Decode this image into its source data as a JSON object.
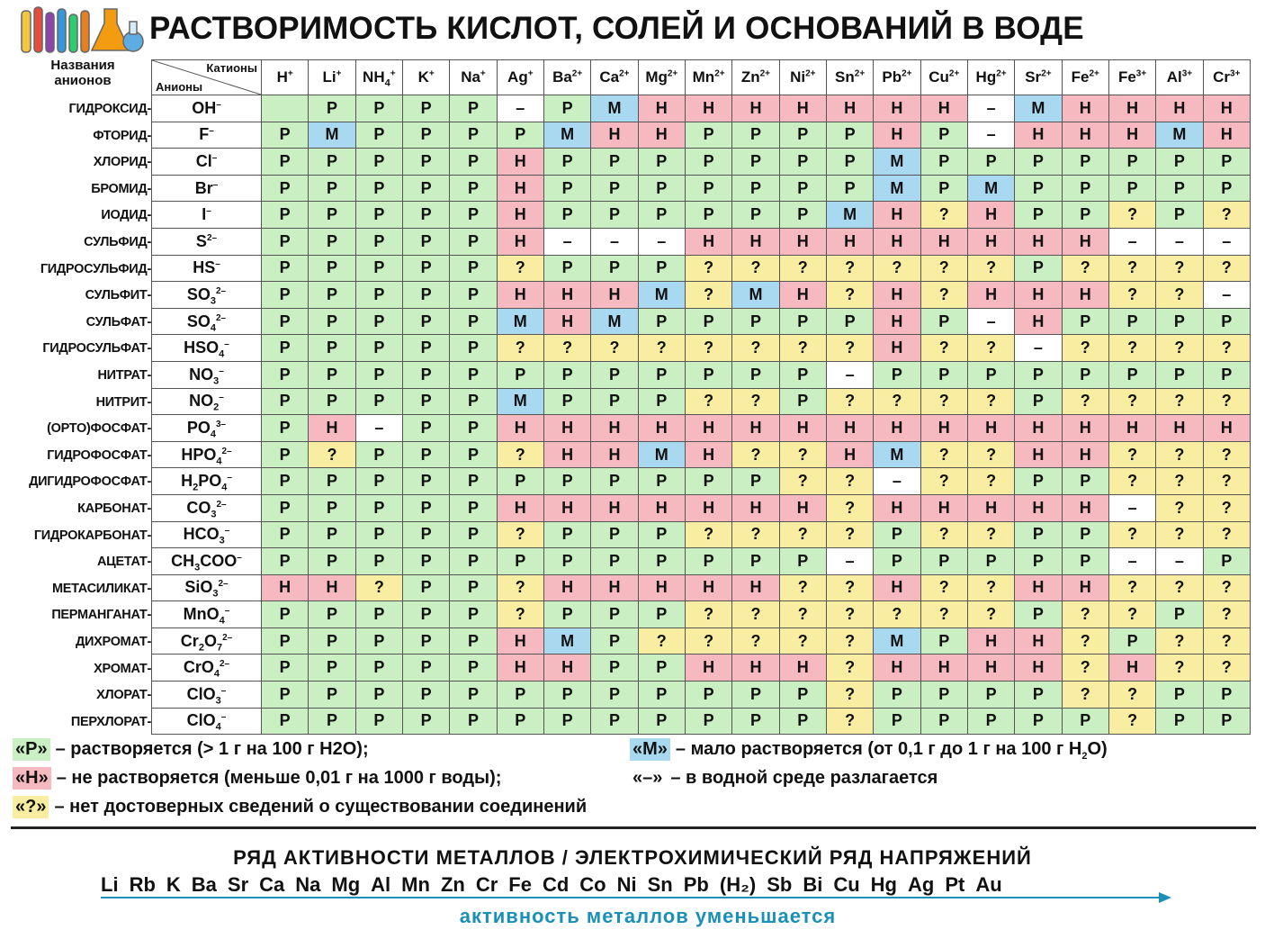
{
  "header": {
    "title": "РАСТВОРИМОСТЬ  КИСЛОТ,  СОЛЕЙ  И  ОСНОВАНИЙ В ВОДЕ"
  },
  "table_header": {
    "anion_names_label": "Названия анионов",
    "corner_cations": "Катионы",
    "corner_anions": "Анионы",
    "cations": [
      {
        "base": "H",
        "charge": "+"
      },
      {
        "base": "Li",
        "charge": "+"
      },
      {
        "base": "NH",
        "sub": "4",
        "charge": "+"
      },
      {
        "base": "K",
        "charge": "+"
      },
      {
        "base": "Na",
        "charge": "+"
      },
      {
        "base": "Ag",
        "charge": "+"
      },
      {
        "base": "Ba",
        "charge": "2+"
      },
      {
        "base": "Ca",
        "charge": "2+"
      },
      {
        "base": "Mg",
        "charge": "2+"
      },
      {
        "base": "Mn",
        "charge": "2+"
      },
      {
        "base": "Zn",
        "charge": "2+"
      },
      {
        "base": "Ni",
        "charge": "2+"
      },
      {
        "base": "Sn",
        "charge": "2+"
      },
      {
        "base": "Pb",
        "charge": "2+"
      },
      {
        "base": "Cu",
        "charge": "2+"
      },
      {
        "base": "Hg",
        "charge": "2+"
      },
      {
        "base": "Sr",
        "charge": "2+"
      },
      {
        "base": "Fe",
        "charge": "2+"
      },
      {
        "base": "Fe",
        "charge": "3+"
      },
      {
        "base": "Al",
        "charge": "3+"
      },
      {
        "base": "Cr",
        "charge": "3+"
      }
    ]
  },
  "rows": [
    {
      "name": "ГИДРОКСИД-",
      "formula": [
        {
          "t": "OH"
        },
        {
          "sup": "–"
        }
      ],
      "cells": [
        "",
        "Р",
        "Р",
        "Р",
        "Р",
        "–",
        "Р",
        "М",
        "Н",
        "Н",
        "Н",
        "Н",
        "Н",
        "Н",
        "Н",
        "–",
        "М",
        "Н",
        "Н",
        "Н",
        "Н"
      ]
    },
    {
      "name": "ФТОРИД-",
      "formula": [
        {
          "t": "F"
        },
        {
          "sup": "–"
        }
      ],
      "cells": [
        "Р",
        "М",
        "Р",
        "Р",
        "Р",
        "Р",
        "М",
        "Н",
        "Н",
        "Р",
        "Р",
        "Р",
        "Р",
        "Н",
        "Р",
        "–",
        "Н",
        "Н",
        "Н",
        "М",
        "Н"
      ]
    },
    {
      "name": "ХЛОРИД-",
      "formula": [
        {
          "t": "Cl"
        },
        {
          "sup": "–"
        }
      ],
      "cells": [
        "Р",
        "Р",
        "Р",
        "Р",
        "Р",
        "Н",
        "Р",
        "Р",
        "Р",
        "Р",
        "Р",
        "Р",
        "Р",
        "М",
        "Р",
        "Р",
        "Р",
        "Р",
        "Р",
        "Р",
        "Р"
      ]
    },
    {
      "name": "БРОМИД-",
      "formula": [
        {
          "t": "Br"
        },
        {
          "sup": "–"
        }
      ],
      "cells": [
        "Р",
        "Р",
        "Р",
        "Р",
        "Р",
        "Н",
        "Р",
        "Р",
        "Р",
        "Р",
        "Р",
        "Р",
        "Р",
        "М",
        "Р",
        "М",
        "Р",
        "Р",
        "Р",
        "Р",
        "Р"
      ]
    },
    {
      "name": "ИОДИД-",
      "formula": [
        {
          "t": "I"
        },
        {
          "sup": "–"
        }
      ],
      "cells": [
        "Р",
        "Р",
        "Р",
        "Р",
        "Р",
        "Н",
        "Р",
        "Р",
        "Р",
        "Р",
        "Р",
        "Р",
        "М",
        "Н",
        "?",
        "Н",
        "Р",
        "Р",
        "?",
        "Р",
        "?"
      ]
    },
    {
      "name": "СУЛЬФИД-",
      "formula": [
        {
          "t": "S"
        },
        {
          "sup": "2–"
        }
      ],
      "cells": [
        "Р",
        "Р",
        "Р",
        "Р",
        "Р",
        "Н",
        "–",
        "–",
        "–",
        "Н",
        "Н",
        "Н",
        "Н",
        "Н",
        "Н",
        "Н",
        "Н",
        "Н",
        "–",
        "–",
        "–"
      ]
    },
    {
      "name": "ГИДРОСУЛЬФИД-",
      "formula": [
        {
          "t": "HS"
        },
        {
          "sup": "–"
        }
      ],
      "cells": [
        "Р",
        "Р",
        "Р",
        "Р",
        "Р",
        "?",
        "Р",
        "Р",
        "Р",
        "?",
        "?",
        "?",
        "?",
        "?",
        "?",
        "?",
        "Р",
        "?",
        "?",
        "?",
        "?"
      ]
    },
    {
      "name": "СУЛЬФИТ-",
      "formula": [
        {
          "t": "SO"
        },
        {
          "sub": "3"
        },
        {
          "sup": "2–"
        }
      ],
      "cells": [
        "Р",
        "Р",
        "Р",
        "Р",
        "Р",
        "Н",
        "Н",
        "Н",
        "М",
        "?",
        "М",
        "Н",
        "?",
        "Н",
        "?",
        "Н",
        "Н",
        "Н",
        "?",
        "?",
        "–"
      ]
    },
    {
      "name": "СУЛЬФАТ-",
      "formula": [
        {
          "t": "SO"
        },
        {
          "sub": "4"
        },
        {
          "sup": "2–"
        }
      ],
      "cells": [
        "Р",
        "Р",
        "Р",
        "Р",
        "Р",
        "М",
        "Н",
        "М",
        "Р",
        "Р",
        "Р",
        "Р",
        "Р",
        "Н",
        "Р",
        "–",
        "Н",
        "Р",
        "Р",
        "Р",
        "Р"
      ]
    },
    {
      "name": "ГИДРОСУЛЬФАТ-",
      "formula": [
        {
          "t": "HSO"
        },
        {
          "sub": "4"
        },
        {
          "sup": "–"
        }
      ],
      "cells": [
        "Р",
        "Р",
        "Р",
        "Р",
        "Р",
        "?",
        "?",
        "?",
        "?",
        "?",
        "?",
        "?",
        "?",
        "Н",
        "?",
        "?",
        "–",
        "?",
        "?",
        "?",
        "?"
      ]
    },
    {
      "name": "НИТРАТ-",
      "formula": [
        {
          "t": "NO"
        },
        {
          "sub": "3"
        },
        {
          "sup": "–"
        }
      ],
      "cells": [
        "Р",
        "Р",
        "Р",
        "Р",
        "Р",
        "Р",
        "Р",
        "Р",
        "Р",
        "Р",
        "Р",
        "Р",
        "–",
        "Р",
        "Р",
        "Р",
        "Р",
        "Р",
        "Р",
        "Р",
        "Р"
      ]
    },
    {
      "name": "НИТРИТ-",
      "formula": [
        {
          "t": "NO"
        },
        {
          "sub": "2"
        },
        {
          "sup": "–"
        }
      ],
      "cells": [
        "Р",
        "Р",
        "Р",
        "Р",
        "Р",
        "М",
        "Р",
        "Р",
        "Р",
        "?",
        "?",
        "Р",
        "?",
        "?",
        "?",
        "?",
        "Р",
        "?",
        "?",
        "?",
        "?"
      ]
    },
    {
      "name": "(ОРТО)ФОСФАТ-",
      "formula": [
        {
          "t": "PO"
        },
        {
          "sub": "4"
        },
        {
          "sup": "3–"
        }
      ],
      "cells": [
        "Р",
        "Н",
        "–",
        "Р",
        "Р",
        "Н",
        "Н",
        "Н",
        "Н",
        "Н",
        "Н",
        "Н",
        "Н",
        "Н",
        "Н",
        "Н",
        "Н",
        "Н",
        "Н",
        "Н",
        "Н"
      ]
    },
    {
      "name": "ГИДРОФОСФАТ-",
      "formula": [
        {
          "t": "HPO"
        },
        {
          "sub": "4"
        },
        {
          "sup": "2–"
        }
      ],
      "cells": [
        "Р",
        "?",
        "Р",
        "Р",
        "Р",
        "?",
        "Н",
        "Н",
        "М",
        "Н",
        "?",
        "?",
        "Н",
        "М",
        "?",
        "?",
        "Н",
        "Н",
        "?",
        "?",
        "?"
      ]
    },
    {
      "name": "ДИГИДРОФОСФАТ-",
      "formula": [
        {
          "t": "H"
        },
        {
          "sub": "2"
        },
        {
          "t": "PO"
        },
        {
          "sub": "4"
        },
        {
          "sup": "–"
        }
      ],
      "cells": [
        "Р",
        "Р",
        "Р",
        "Р",
        "Р",
        "Р",
        "Р",
        "Р",
        "Р",
        "Р",
        "Р",
        "?",
        "?",
        "–",
        "?",
        "?",
        "Р",
        "Р",
        "?",
        "?",
        "?"
      ]
    },
    {
      "name": "КАРБОНАТ-",
      "formula": [
        {
          "t": "CO"
        },
        {
          "sub": "3"
        },
        {
          "sup": "2–"
        }
      ],
      "cells": [
        "Р",
        "Р",
        "Р",
        "Р",
        "Р",
        "Н",
        "Н",
        "Н",
        "Н",
        "Н",
        "Н",
        "Н",
        "?",
        "Н",
        "Н",
        "Н",
        "Н",
        "Н",
        "–",
        "?",
        "?"
      ]
    },
    {
      "name": "ГИДРОКАРБОНАТ-",
      "formula": [
        {
          "t": "HCO"
        },
        {
          "sub": "3"
        },
        {
          "sup": "–"
        }
      ],
      "cells": [
        "Р",
        "Р",
        "Р",
        "Р",
        "Р",
        "?",
        "Р",
        "Р",
        "Р",
        "?",
        "?",
        "?",
        "?",
        "Р",
        "?",
        "?",
        "Р",
        "Р",
        "?",
        "?",
        "?"
      ]
    },
    {
      "name": "АЦЕТАТ-",
      "formula": [
        {
          "t": "CH"
        },
        {
          "sub": "3"
        },
        {
          "t": "COO"
        },
        {
          "sup": "–"
        }
      ],
      "cells": [
        "Р",
        "Р",
        "Р",
        "Р",
        "Р",
        "Р",
        "Р",
        "Р",
        "Р",
        "Р",
        "Р",
        "Р",
        "–",
        "Р",
        "Р",
        "Р",
        "Р",
        "Р",
        "–",
        "–",
        "Р"
      ]
    },
    {
      "name": "МЕТАСИЛИКАТ-",
      "formula": [
        {
          "t": "SiO"
        },
        {
          "sub": "3"
        },
        {
          "sup": "2–"
        }
      ],
      "cells": [
        "Н",
        "Н",
        "?",
        "Р",
        "Р",
        "?",
        "Н",
        "Н",
        "Н",
        "Н",
        "Н",
        "?",
        "?",
        "Н",
        "?",
        "?",
        "Н",
        "Н",
        "?",
        "?",
        "?"
      ]
    },
    {
      "name": "ПЕРМАНГАНАТ-",
      "formula": [
        {
          "t": "MnO"
        },
        {
          "sub": "4"
        },
        {
          "sup": "–"
        }
      ],
      "cells": [
        "Р",
        "Р",
        "Р",
        "Р",
        "Р",
        "?",
        "Р",
        "Р",
        "Р",
        "?",
        "?",
        "?",
        "?",
        "?",
        "?",
        "?",
        "Р",
        "?",
        "?",
        "Р",
        "?"
      ]
    },
    {
      "name": "ДИХРОМАТ-",
      "formula": [
        {
          "t": "Cr"
        },
        {
          "sub": "2"
        },
        {
          "t": "O"
        },
        {
          "sub": "7"
        },
        {
          "sup": "2–"
        }
      ],
      "cells": [
        "Р",
        "Р",
        "Р",
        "Р",
        "Р",
        "Н",
        "М",
        "Р",
        "?",
        "?",
        "?",
        "?",
        "?",
        "М",
        "Р",
        "Н",
        "Н",
        "?",
        "Р",
        "?",
        "?"
      ]
    },
    {
      "name": "ХРОМАТ-",
      "formula": [
        {
          "t": "CrO"
        },
        {
          "sub": "4"
        },
        {
          "sup": "2–"
        }
      ],
      "cells": [
        "Р",
        "Р",
        "Р",
        "Р",
        "Р",
        "Н",
        "Н",
        "Р",
        "Р",
        "Н",
        "Н",
        "Н",
        "?",
        "Н",
        "Н",
        "Н",
        "Н",
        "?",
        "Н",
        "?",
        "?"
      ]
    },
    {
      "name": "ХЛОРАТ-",
      "formula": [
        {
          "t": "ClO"
        },
        {
          "sub": "3"
        },
        {
          "sup": "–"
        }
      ],
      "cells": [
        "Р",
        "Р",
        "Р",
        "Р",
        "Р",
        "Р",
        "Р",
        "Р",
        "Р",
        "Р",
        "Р",
        "Р",
        "?",
        "Р",
        "Р",
        "Р",
        "Р",
        "?",
        "?",
        "Р",
        "Р"
      ]
    },
    {
      "name": "ПЕРХЛОРАТ-",
      "formula": [
        {
          "t": "ClO"
        },
        {
          "sub": "4"
        },
        {
          "sup": "–"
        }
      ],
      "cells": [
        "Р",
        "Р",
        "Р",
        "Р",
        "Р",
        "Р",
        "Р",
        "Р",
        "Р",
        "Р",
        "Р",
        "Р",
        "?",
        "Р",
        "Р",
        "Р",
        "Р",
        "Р",
        "?",
        "Р",
        "Р"
      ]
    }
  ],
  "legend": {
    "r_key": "«Р»",
    "r_text": "– растворяется (> 1 г на 100 г H2O);",
    "m_key": "«М»",
    "m_text_a": "– мало растворяется (от 0,1 г до 1 г на 100 г H",
    "m_text_sub": "2",
    "m_text_b": "O)",
    "n_key": "«Н»",
    "n_text": "– не растворяется (меньше 0,01 г на 1000 г воды);",
    "dash_key": "«–»",
    "dash_text": "– в водной среде разлагается",
    "q_key": "«?»",
    "q_text": "– нет достоверных сведений о существовании соединений"
  },
  "activity": {
    "title": "РЯД  АКТИВНОСТИ  МЕТАЛЛОВ  /  ЭЛЕКТРОХИМИЧЕСКИЙ  РЯД  НАПРЯЖЕНИЙ",
    "metals": [
      "Li",
      "Rb",
      "K",
      "Ba",
      "Sr",
      "Ca",
      "Na",
      "Mg",
      "Al",
      "Mn",
      "Zn",
      "Cr",
      "Fe",
      "Cd",
      "Co",
      "Ni",
      "Sn",
      "Pb",
      "(H₂)",
      "Sb",
      "Bi",
      "Cu",
      "Hg",
      "Ag",
      "Pt",
      "Au"
    ],
    "decreasing": "активность  металлов  уменьшается",
    "arrow_color": "#1a8fb8"
  },
  "colors": {
    "soluble": "#c9efc2",
    "insoluble": "#f6b9bf",
    "slightly": "#a9d9f0",
    "unknown": "#f9eda1",
    "decomposes": "#ffffff"
  }
}
